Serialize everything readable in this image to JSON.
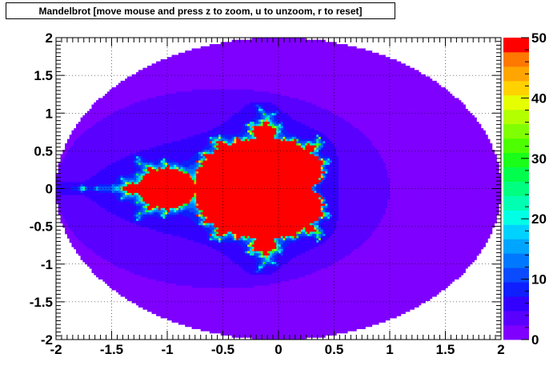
{
  "window": {
    "title": "Mandelbrot [move mouse and  press z to zoom, u to unzoom, r to reset]"
  },
  "chart_data": {
    "type": "heatmap",
    "title": "Mandelbrot [move mouse and  press z to zoom, u to unzoom, r to reset]",
    "xlabel": "",
    "ylabel": "",
    "xlim": [
      -2,
      2
    ],
    "ylim": [
      -2,
      2
    ],
    "zlim": [
      0,
      50
    ],
    "x_ticks": [
      -2,
      -1.5,
      -1,
      -0.5,
      0,
      0.5,
      1,
      1.5,
      2
    ],
    "y_ticks": [
      -2,
      -1.5,
      -1,
      -0.5,
      0,
      0.5,
      1,
      1.5,
      2
    ],
    "z_ticks": [
      0,
      10,
      20,
      30,
      40,
      50
    ],
    "x_tick_labels": [
      "-2",
      "-1.5",
      "-1",
      "-0.5",
      "0",
      "0.5",
      "1",
      "1.5",
      "2"
    ],
    "y_tick_labels": [
      "-2",
      "-1.5",
      "-1",
      "-0.5",
      "0",
      "0.5",
      "1",
      "1.5",
      "2"
    ],
    "z_tick_labels": [
      "0",
      "10",
      "20",
      "30",
      "40",
      "50"
    ],
    "grid": true,
    "function": "mandelbrot_escape_iterations",
    "max_iterations": 50,
    "colorbar": [
      "#7f00ff",
      "#5a00ff",
      "#3300ff",
      "#0f1fff",
      "#0a4bff",
      "#0078ff",
      "#00a5ff",
      "#00d2ff",
      "#00ffe5",
      "#00ffb3",
      "#00ff80",
      "#00ff4d",
      "#1aff1a",
      "#4dff00",
      "#80ff00",
      "#b3ff00",
      "#e5ff00",
      "#ffd200",
      "#ffa500",
      "#ff7800",
      "#ff0000"
    ],
    "colors": {
      "outside": "#ffffff",
      "inside": "#ff0000"
    }
  }
}
